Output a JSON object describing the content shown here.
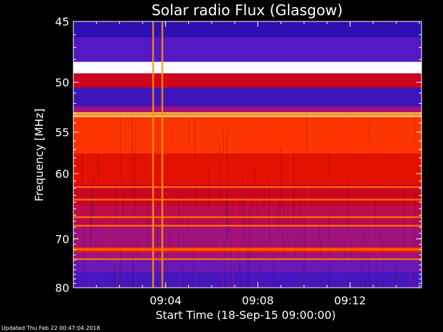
{
  "footer_text": "Updated Thu Feb 22 00:47:04 2018",
  "chart_data": {
    "type": "heatmap",
    "title": "Solar radio Flux (Glasgow)",
    "xlabel": "Start Time (18-Sep-15 09:00:00)",
    "ylabel": "Frequency [MHz]",
    "x_unit": "minutes after 09:00:00",
    "xlim": [
      0,
      15.1
    ],
    "ylim": [
      45,
      80
    ],
    "yscale": "reciprocal",
    "x_ticks": [
      {
        "value": 4,
        "label": "09:04"
      },
      {
        "value": 8,
        "label": "09:08"
      },
      {
        "value": 12,
        "label": "09:12"
      }
    ],
    "y_ticks": [
      {
        "value": 45,
        "label": "45"
      },
      {
        "value": 50,
        "label": "50"
      },
      {
        "value": 55,
        "label": "55"
      },
      {
        "value": 60,
        "label": "60"
      },
      {
        "value": 70,
        "label": "70"
      },
      {
        "value": 80,
        "label": "80"
      }
    ],
    "colormap": [
      "#1a0aa8",
      "#5a1ac8",
      "#b0106a",
      "#d80000",
      "#ff3a00",
      "#ffb000",
      "#ffffff"
    ],
    "frequency_bands": [
      {
        "from": 45,
        "to": 46.2,
        "level": 0.05
      },
      {
        "from": 46.2,
        "to": 48.2,
        "level": 0.15
      },
      {
        "from": 48.2,
        "to": 49.2,
        "level": 1.0
      },
      {
        "from": 49.2,
        "to": 50.5,
        "level": 0.45
      },
      {
        "from": 50.5,
        "to": 52.3,
        "level": 0.1
      },
      {
        "from": 52.3,
        "to": 52.9,
        "level": 0.3
      },
      {
        "from": 52.9,
        "to": 53.4,
        "level": 0.9
      },
      {
        "from": 53.4,
        "to": 57.5,
        "level": 0.65
      },
      {
        "from": 57.5,
        "to": 61.5,
        "level": 0.55
      },
      {
        "from": 61.5,
        "to": 64.5,
        "level": 0.45
      },
      {
        "from": 64.5,
        "to": 68.0,
        "level": 0.38
      },
      {
        "from": 68.0,
        "to": 71.5,
        "level": 0.3
      },
      {
        "from": 71.5,
        "to": 72.5,
        "level": 0.6
      },
      {
        "from": 72.5,
        "to": 74.0,
        "level": 0.3
      },
      {
        "from": 74.0,
        "to": 76.5,
        "level": 0.2
      },
      {
        "from": 76.5,
        "to": 80,
        "level": 0.12
      }
    ],
    "bright_lines_mhz": [
      48.7,
      53.1,
      61.8,
      63.6,
      66.3,
      67.7,
      71.9,
      73.8
    ],
    "bright_columns_min": [
      3.45,
      3.85
    ]
  }
}
